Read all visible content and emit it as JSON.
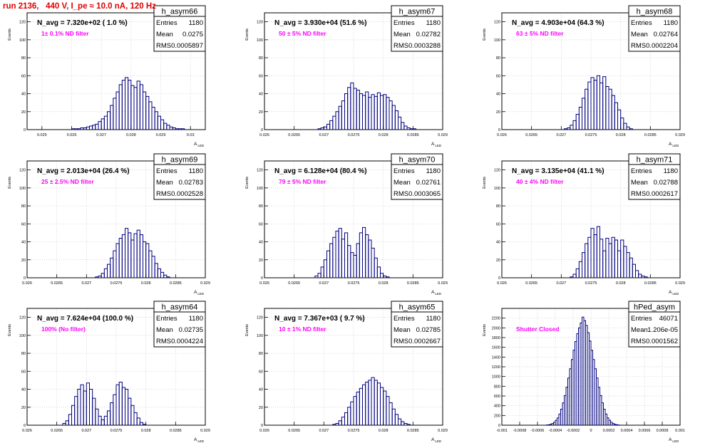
{
  "page": {
    "run_title": "run 2136,   440 V, I_pe ≈ 10.0 nA, 120 Hz",
    "ylabel": "Events",
    "xlabel_main": "A",
    "xlabel_sub": "LED",
    "stats_labels": [
      "Entries",
      "Mean",
      "RMS"
    ]
  },
  "chart_data": [
    {
      "type": "bar",
      "name": "h_asym66",
      "title": "N_avg = 7.320e+02 ( 1.0 %)",
      "note": "1± 0.1% ND filter",
      "stats": {
        "entries": "1180",
        "mean": "0.0275",
        "rms": "0.0005897"
      },
      "xlim": [
        0.0245,
        0.0305
      ],
      "ylim": [
        0,
        130
      ],
      "xticks": [
        0.025,
        0.026,
        0.027,
        0.028,
        0.029,
        0.03
      ],
      "xtick_labels": [
        "0.025",
        "0.026",
        "0.027",
        "0.028",
        "0.029",
        "0.03"
      ],
      "yticks": [
        0,
        20,
        40,
        60,
        80,
        100,
        120
      ],
      "ytick_labels": [
        "0",
        "20",
        "40",
        "60",
        "80",
        "100",
        "120"
      ],
      "bins_lo": 0.0245,
      "bin_width": 0.0001,
      "values": [
        0,
        0,
        0,
        0,
        0,
        0,
        0,
        0,
        0,
        0,
        0,
        0,
        0,
        0,
        0,
        1,
        1,
        1,
        2,
        2,
        3,
        4,
        5,
        6,
        9,
        12,
        15,
        20,
        27,
        35,
        42,
        50,
        55,
        58,
        55,
        49,
        47,
        54,
        50,
        42,
        37,
        31,
        25,
        20,
        15,
        11,
        7,
        5,
        3,
        2,
        1,
        1,
        1,
        0,
        0,
        0,
        0,
        0,
        0,
        0
      ]
    },
    {
      "type": "bar",
      "name": "h_asym67",
      "title": "N_avg = 3.930e+04 (51.6 %)",
      "note": "50 ± 5% ND filter",
      "stats": {
        "entries": "1180",
        "mean": "0.02782",
        "rms": "0.0003288"
      },
      "xlim": [
        0.026,
        0.029
      ],
      "ylim": [
        0,
        130
      ],
      "xticks": [
        0.026,
        0.0265,
        0.027,
        0.0275,
        0.028,
        0.0285,
        0.029
      ],
      "xtick_labels": [
        "0.026",
        "0.0265",
        "0.027",
        "0.0275",
        "0.028",
        "0.0285",
        "0.029"
      ],
      "yticks": [
        0,
        20,
        40,
        60,
        80,
        100,
        120
      ],
      "ytick_labels": [
        "0",
        "20",
        "40",
        "60",
        "80",
        "100",
        "120"
      ],
      "bins_lo": 0.026,
      "bin_width": 5e-05,
      "values": [
        0,
        0,
        0,
        0,
        0,
        0,
        0,
        0,
        0,
        0,
        0,
        0,
        0,
        0,
        0,
        0,
        0,
        0,
        1,
        2,
        3,
        6,
        10,
        15,
        20,
        26,
        32,
        40,
        47,
        52,
        46,
        44,
        40,
        38,
        42,
        36,
        39,
        37,
        41,
        38,
        39,
        36,
        32,
        27,
        21,
        14,
        8,
        4,
        2,
        1,
        1,
        0,
        0,
        0,
        0,
        0,
        0,
        0,
        0,
        0
      ]
    },
    {
      "type": "bar",
      "name": "h_asym68",
      "title": "N_avg = 4.903e+04 (64.3 %)",
      "note": "63 ± 5% ND filter",
      "stats": {
        "entries": "1180",
        "mean": "0.02764",
        "rms": "0.0002204"
      },
      "xlim": [
        0.026,
        0.029
      ],
      "ylim": [
        0,
        130
      ],
      "xticks": [
        0.026,
        0.0265,
        0.027,
        0.0275,
        0.028,
        0.0285,
        0.029
      ],
      "xtick_labels": [
        "0.026",
        "0.0265",
        "0.027",
        "0.0275",
        "0.028",
        "0.0285",
        "0.029"
      ],
      "yticks": [
        0,
        20,
        40,
        60,
        80,
        100,
        120
      ],
      "ytick_labels": [
        "0",
        "20",
        "40",
        "60",
        "80",
        "100",
        "120"
      ],
      "bins_lo": 0.026,
      "bin_width": 5e-05,
      "values": [
        0,
        0,
        0,
        0,
        0,
        0,
        0,
        0,
        0,
        0,
        0,
        0,
        0,
        0,
        0,
        0,
        0,
        0,
        0,
        0,
        0,
        1,
        2,
        5,
        10,
        17,
        25,
        35,
        45,
        53,
        58,
        55,
        60,
        52,
        59,
        48,
        45,
        38,
        30,
        22,
        13,
        7,
        3,
        1,
        0,
        0,
        0,
        0,
        0,
        0,
        0,
        0,
        0,
        0,
        0,
        0,
        0,
        0,
        0,
        0
      ]
    },
    {
      "type": "bar",
      "name": "h_asym69",
      "title": "N_avg = 2.013e+04 (26.4 %)",
      "note": "25 ± 2.5% ND filter",
      "stats": {
        "entries": "1180",
        "mean": "0.02783",
        "rms": "0.0002528"
      },
      "xlim": [
        0.026,
        0.029
      ],
      "ylim": [
        0,
        130
      ],
      "xticks": [
        0.026,
        0.0265,
        0.027,
        0.0275,
        0.028,
        0.0285,
        0.029
      ],
      "xtick_labels": [
        "0.026",
        "0.0265",
        "0.027",
        "0.0275",
        "0.028",
        "0.0285",
        "0.029"
      ],
      "yticks": [
        0,
        20,
        40,
        60,
        80,
        100,
        120
      ],
      "ytick_labels": [
        "0",
        "20",
        "40",
        "60",
        "80",
        "100",
        "120"
      ],
      "bins_lo": 0.026,
      "bin_width": 5e-05,
      "values": [
        0,
        0,
        0,
        0,
        0,
        0,
        0,
        0,
        0,
        0,
        0,
        0,
        0,
        0,
        0,
        0,
        0,
        0,
        0,
        0,
        0,
        0,
        0,
        1,
        2,
        5,
        10,
        15,
        22,
        30,
        38,
        44,
        48,
        55,
        50,
        42,
        49,
        53,
        48,
        40,
        38,
        30,
        24,
        16,
        10,
        6,
        3,
        1,
        0,
        0,
        0,
        0,
        0,
        0,
        0,
        0,
        0,
        0,
        0,
        0
      ]
    },
    {
      "type": "bar",
      "name": "h_asym70",
      "title": "N_avg = 6.128e+04 (80.4 %)",
      "note": "79 ± 5% ND filter",
      "stats": {
        "entries": "1180",
        "mean": "0.02761",
        "rms": "0.0003065"
      },
      "xlim": [
        0.026,
        0.029
      ],
      "ylim": [
        0,
        130
      ],
      "xticks": [
        0.026,
        0.0265,
        0.027,
        0.0275,
        0.028,
        0.0285,
        0.029
      ],
      "xtick_labels": [
        "0.026",
        "0.0265",
        "0.027",
        "0.0275",
        "0.028",
        "0.0285",
        "0.029"
      ],
      "yticks": [
        0,
        20,
        40,
        60,
        80,
        100,
        120
      ],
      "ytick_labels": [
        "0",
        "20",
        "40",
        "60",
        "80",
        "100",
        "120"
      ],
      "bins_lo": 0.026,
      "bin_width": 5e-05,
      "values": [
        0,
        0,
        0,
        0,
        0,
        0,
        0,
        0,
        0,
        0,
        0,
        0,
        0,
        0,
        0,
        0,
        0,
        2,
        5,
        12,
        20,
        30,
        38,
        45,
        52,
        55,
        43,
        50,
        36,
        28,
        25,
        38,
        50,
        56,
        48,
        42,
        33,
        22,
        12,
        5,
        2,
        1,
        0,
        0,
        0,
        0,
        0,
        0,
        0,
        0,
        0,
        0,
        0,
        0,
        0,
        0,
        0,
        0,
        0,
        0
      ]
    },
    {
      "type": "bar",
      "name": "h_asym71",
      "title": "N_avg = 3.135e+04 (41.1 %)",
      "note": "40 ± 4% ND filter",
      "stats": {
        "entries": "1180",
        "mean": "0.02788",
        "rms": "0.0002617"
      },
      "xlim": [
        0.026,
        0.029
      ],
      "ylim": [
        0,
        130
      ],
      "xticks": [
        0.026,
        0.0265,
        0.027,
        0.0275,
        0.028,
        0.0285,
        0.029
      ],
      "xtick_labels": [
        "0.026",
        "0.0265",
        "0.027",
        "0.0275",
        "0.028",
        "0.0285",
        "0.029"
      ],
      "yticks": [
        0,
        20,
        40,
        60,
        80,
        100,
        120
      ],
      "ytick_labels": [
        "0",
        "20",
        "40",
        "60",
        "80",
        "100",
        "120"
      ],
      "bins_lo": 0.026,
      "bin_width": 5e-05,
      "values": [
        0,
        0,
        0,
        0,
        0,
        0,
        0,
        0,
        0,
        0,
        0,
        0,
        0,
        0,
        0,
        0,
        0,
        0,
        0,
        0,
        0,
        0,
        0,
        1,
        4,
        10,
        18,
        28,
        38,
        45,
        55,
        48,
        57,
        43,
        30,
        44,
        38,
        45,
        42,
        30,
        42,
        35,
        28,
        22,
        15,
        8,
        4,
        2,
        1,
        0,
        0,
        0,
        0,
        0,
        0,
        0,
        0,
        0,
        0,
        0
      ]
    },
    {
      "type": "bar",
      "name": "h_asym64",
      "title": "N_avg = 7.624e+04 (100.0 %)",
      "note": "100% (No filter)",
      "stats": {
        "entries": "1180",
        "mean": "0.02735",
        "rms": "0.0004224"
      },
      "xlim": [
        0.026,
        0.029
      ],
      "ylim": [
        0,
        130
      ],
      "xticks": [
        0.026,
        0.0265,
        0.027,
        0.0275,
        0.028,
        0.0285,
        0.029
      ],
      "xtick_labels": [
        "0.026",
        "0.0265",
        "0.027",
        "0.0275",
        "0.028",
        "0.0285",
        "0.029"
      ],
      "yticks": [
        0,
        20,
        40,
        60,
        80,
        100,
        120
      ],
      "ytick_labels": [
        "0",
        "20",
        "40",
        "60",
        "80",
        "100",
        "120"
      ],
      "bins_lo": 0.026,
      "bin_width": 5e-05,
      "values": [
        0,
        0,
        0,
        0,
        0,
        0,
        0,
        0,
        0,
        0,
        0,
        0,
        2,
        5,
        12,
        22,
        32,
        40,
        45,
        38,
        47,
        40,
        30,
        18,
        10,
        6,
        10,
        16,
        25,
        34,
        45,
        48,
        42,
        40,
        30,
        22,
        14,
        8,
        3,
        1,
        0,
        0,
        0,
        0,
        0,
        0,
        0,
        0,
        0,
        0,
        0,
        0,
        0,
        0,
        0,
        0,
        0,
        0,
        0,
        0
      ]
    },
    {
      "type": "bar",
      "name": "h_asym65",
      "title": "N_avg = 7.367e+03 ( 9.7 %)",
      "note": "10 ± 1% ND filter",
      "stats": {
        "entries": "1180",
        "mean": "0.02785",
        "rms": "0.0002667"
      },
      "xlim": [
        0.026,
        0.029
      ],
      "ylim": [
        0,
        130
      ],
      "xticks": [
        0.026,
        0.0265,
        0.027,
        0.0275,
        0.028,
        0.0285,
        0.029
      ],
      "xtick_labels": [
        "0.026",
        "0.0265",
        "0.027",
        "0.0275",
        "0.028",
        "0.0285",
        "0.029"
      ],
      "yticks": [
        0,
        20,
        40,
        60,
        80,
        100,
        120
      ],
      "ytick_labels": [
        "0",
        "20",
        "40",
        "60",
        "80",
        "100",
        "120"
      ],
      "bins_lo": 0.026,
      "bin_width": 5e-05,
      "values": [
        0,
        0,
        0,
        0,
        0,
        0,
        0,
        0,
        0,
        0,
        0,
        0,
        0,
        0,
        0,
        0,
        0,
        0,
        0,
        0,
        0,
        0,
        0,
        1,
        2,
        5,
        9,
        14,
        20,
        26,
        32,
        37,
        41,
        45,
        48,
        50,
        53,
        50,
        47,
        42,
        38,
        32,
        25,
        18,
        12,
        7,
        4,
        2,
        1,
        0,
        0,
        0,
        0,
        0,
        0,
        0,
        0,
        0,
        0,
        0
      ]
    },
    {
      "type": "bar",
      "name": "hPed_asym",
      "title": "",
      "note": "Shutter Closed",
      "stats": {
        "entries": "46071",
        "mean": "1.206e-05",
        "rms": "0.0001562"
      },
      "xlim": [
        -0.001,
        0.001
      ],
      "ylim": [
        0,
        2400
      ],
      "xticks": [
        -0.001,
        -0.0008,
        -0.0006,
        -0.0004,
        -0.0002,
        0,
        0.0002,
        0.0004,
        0.0006,
        0.0008,
        0.001
      ],
      "xtick_labels": [
        "-0.001",
        "-0.0008",
        "-0.0006",
        "-0.0004",
        "-0.0002",
        "0",
        "0.0002",
        "0.0004",
        "0.0006",
        "0.0008",
        "0.001"
      ],
      "yticks": [
        0,
        200,
        400,
        600,
        800,
        1000,
        1200,
        1400,
        1600,
        1800,
        2000,
        2200
      ],
      "ytick_labels": [
        "0",
        "200",
        "400",
        "600",
        "800",
        "1000",
        "1200",
        "1400",
        "1600",
        "1800",
        "2000",
        "2200"
      ],
      "bins_lo": -0.001,
      "bin_width": 2e-05,
      "values": [
        0,
        0,
        0,
        0,
        0,
        0,
        0,
        0,
        0,
        0,
        0,
        0,
        0,
        0,
        0,
        0,
        0,
        0,
        0,
        0,
        0,
        0,
        0,
        0,
        0,
        5,
        10,
        20,
        35,
        60,
        100,
        150,
        230,
        330,
        460,
        610,
        780,
        970,
        1160,
        1350,
        1540,
        1720,
        1880,
        2000,
        2100,
        2220,
        2150,
        2050,
        1900,
        1730,
        1540,
        1350,
        1160,
        970,
        780,
        610,
        460,
        330,
        230,
        150,
        100,
        60,
        35,
        20,
        10,
        5,
        0,
        0,
        0,
        0,
        0,
        0,
        0,
        0,
        0,
        0,
        0,
        0,
        0,
        0,
        0,
        0,
        0,
        0,
        0,
        0,
        0,
        0,
        0,
        0,
        0,
        0,
        0,
        0,
        0,
        0,
        0,
        0,
        0,
        0
      ]
    }
  ]
}
